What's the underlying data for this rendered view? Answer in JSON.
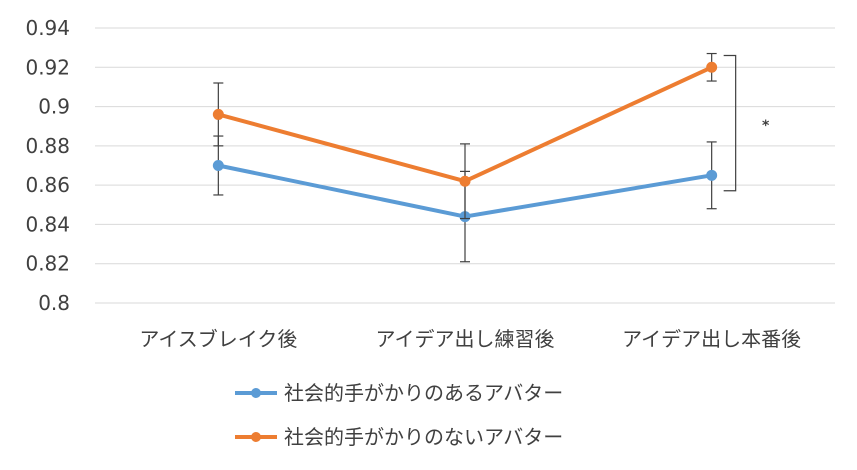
{
  "chart_data": {
    "type": "line",
    "categories": [
      "アイスブレイク後",
      "アイデア出し練習後",
      "アイデア出し本番後"
    ],
    "series": [
      {
        "name": "社会的手がかりのあるアバター",
        "values": [
          0.87,
          0.844,
          0.865
        ],
        "error": [
          0.015,
          0.023,
          0.017
        ],
        "color": "#5b9bd5"
      },
      {
        "name": "社会的手がかりのないアバター",
        "values": [
          0.896,
          0.862,
          0.92
        ],
        "error": [
          0.016,
          0.019,
          0.007
        ],
        "color": "#ed7d31"
      }
    ],
    "ylim": [
      0.8,
      0.94
    ],
    "yticks": [
      "0.8",
      "0.82",
      "0.84",
      "0.86",
      "0.88",
      "0.9",
      "0.92",
      "0.94"
    ],
    "grid": true,
    "legend_position": "bottom",
    "annotation": "*",
    "title": "",
    "xlabel": "",
    "ylabel": ""
  }
}
